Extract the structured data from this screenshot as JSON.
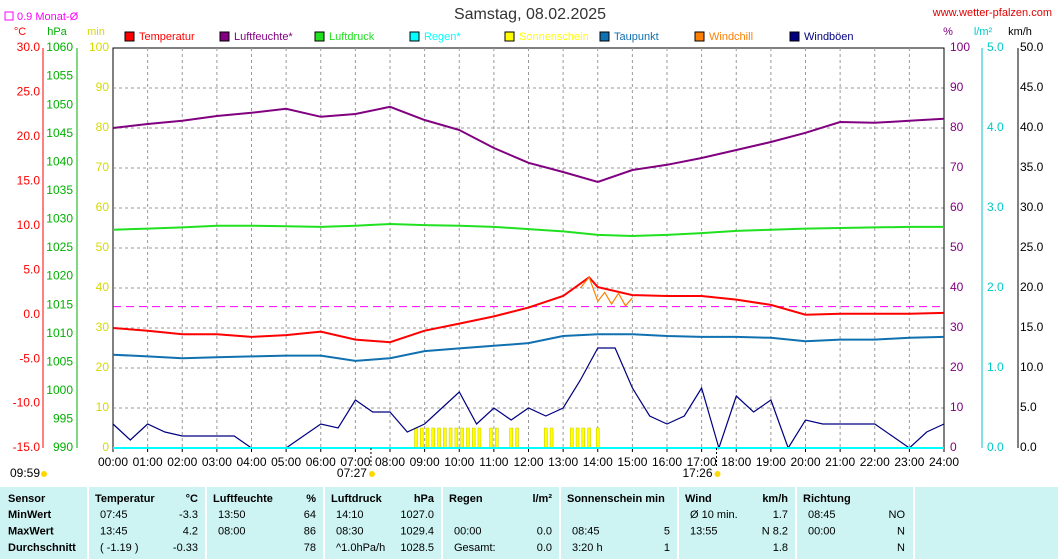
{
  "chart_data": {
    "type": "line",
    "title": "Samstag, 08.02.2025",
    "source": "www.wetter-pfalzen.com",
    "xlim": [
      0,
      24
    ],
    "xticks": [
      {
        "value": 0,
        "label": "00:00"
      },
      {
        "value": 1,
        "label": "01:00"
      },
      {
        "value": 2,
        "label": "02:00"
      },
      {
        "value": 3,
        "label": "03:00"
      },
      {
        "value": 4,
        "label": "04:00"
      },
      {
        "value": 5,
        "label": "05:00"
      },
      {
        "value": 6,
        "label": "06:00"
      },
      {
        "value": 7,
        "label": "07:00"
      },
      {
        "value": 8,
        "label": "08:00"
      },
      {
        "value": 9,
        "label": "09:00"
      },
      {
        "value": 10,
        "label": "10:00"
      },
      {
        "value": 11,
        "label": "11:00"
      },
      {
        "value": 12,
        "label": "12:00"
      },
      {
        "value": 13,
        "label": "13:00"
      },
      {
        "value": 14,
        "label": "14:00"
      },
      {
        "value": 15,
        "label": "15:00"
      },
      {
        "value": 16,
        "label": "16:00"
      },
      {
        "value": 17,
        "label": "17:00"
      },
      {
        "value": 18,
        "label": "18:00"
      },
      {
        "value": 19,
        "label": "19:00"
      },
      {
        "value": 20,
        "label": "20:00"
      },
      {
        "value": 21,
        "label": "21:00"
      },
      {
        "value": 22,
        "label": "22:00"
      },
      {
        "value": 23,
        "label": "23:00"
      },
      {
        "value": 24,
        "label": "24:00"
      }
    ],
    "grid": true,
    "axes": [
      {
        "label": "°C",
        "color": "#ff0000",
        "lim": [
          -15,
          30
        ],
        "ticks": [
          {
            "value": -15,
            "label": "-15.0"
          },
          {
            "value": -10,
            "label": "-10.0"
          },
          {
            "value": -5,
            "label": "-5.0"
          },
          {
            "value": 0,
            "label": "0.0"
          },
          {
            "value": 5,
            "label": "5.0"
          },
          {
            "value": 10,
            "label": "10.0"
          },
          {
            "value": 15,
            "label": "15.0"
          },
          {
            "value": 20,
            "label": "20.0"
          },
          {
            "value": 25,
            "label": "25.0"
          },
          {
            "value": 30,
            "label": "30.0"
          }
        ]
      },
      {
        "label": "hPa",
        "color": "#00b000",
        "lim": [
          990,
          1060
        ],
        "ticks": [
          990,
          995,
          1000,
          1005,
          1010,
          1015,
          1020,
          1025,
          1030,
          1035,
          1040,
          1045,
          1050,
          1055,
          1060
        ]
      },
      {
        "label": "min",
        "color": "#d8d800",
        "lim": [
          0,
          100
        ],
        "ticks": [
          0,
          10,
          20,
          30,
          40,
          50,
          60,
          70,
          80,
          90,
          100
        ]
      },
      {
        "label": "%",
        "color": "#800080",
        "lim": [
          0,
          100
        ],
        "ticks": [
          0,
          10,
          20,
          30,
          40,
          50,
          60,
          70,
          80,
          90,
          100
        ]
      },
      {
        "label": "l/m²",
        "color": "#00c8c8",
        "lim": [
          0,
          5
        ],
        "ticks": [
          {
            "value": 0,
            "label": "0.0"
          },
          {
            "value": 1,
            "label": "1.0"
          },
          {
            "value": 2,
            "label": "2.0"
          },
          {
            "value": 3,
            "label": "3.0"
          },
          {
            "value": 4,
            "label": "4.0"
          },
          {
            "value": 5,
            "label": "5.0"
          }
        ]
      },
      {
        "label": "km/h",
        "color": "#000000",
        "lim": [
          0,
          50
        ],
        "ticks": [
          {
            "value": 0,
            "label": "0.0"
          },
          {
            "value": 5,
            "label": "5.0"
          },
          {
            "value": 10,
            "label": "10.0"
          },
          {
            "value": 15,
            "label": "15.0"
          },
          {
            "value": 20,
            "label": "20.0"
          },
          {
            "value": 25,
            "label": "25.0"
          },
          {
            "value": 30,
            "label": "30.0"
          },
          {
            "value": 35,
            "label": "35.0"
          },
          {
            "value": 40,
            "label": "40.0"
          },
          {
            "value": 45,
            "label": "45.0"
          },
          {
            "value": 50,
            "label": "50.0"
          }
        ]
      }
    ],
    "reference": {
      "label": "0.9 Monat-Ø",
      "value": 0.9,
      "axis": 0,
      "color": "#ff00ff"
    },
    "series": [
      {
        "name": "Temperatur",
        "color": "#ff0000",
        "axis": 0,
        "x": [
          0,
          1,
          2,
          3,
          4,
          5,
          6,
          7,
          8,
          9,
          10,
          11,
          12,
          13,
          13.75,
          14,
          15,
          16,
          17,
          18,
          19,
          20,
          21,
          22,
          23,
          24
        ],
        "values": [
          -1.5,
          -1.8,
          -2.2,
          -2.2,
          -2.5,
          -2.3,
          -1.9,
          -2.8,
          -3.1,
          -1.8,
          -1.0,
          -0.2,
          0.8,
          2.1,
          4.2,
          3.1,
          2.2,
          2.1,
          2.1,
          1.7,
          1.1,
          0.0,
          0.1,
          0.1,
          0.1,
          0.2
        ]
      },
      {
        "name": "Luftfeuchte*",
        "color": "#800080",
        "axis": 3,
        "x": [
          0,
          1,
          2,
          3,
          4,
          5,
          6,
          7,
          8,
          9,
          10,
          11,
          12,
          13,
          14,
          15,
          16,
          17,
          18,
          19,
          20,
          21,
          22,
          23,
          24
        ],
        "values": [
          80,
          81,
          81.8,
          83,
          83.8,
          84.8,
          82.8,
          83.5,
          85.3,
          82,
          79.5,
          75,
          71.3,
          69,
          66.5,
          69.5,
          70.8,
          72.5,
          74.5,
          76.5,
          78.8,
          81.5,
          81.3,
          81.8,
          82.3
        ]
      },
      {
        "name": "Luftdruck",
        "color": "#20e020",
        "axis": 1,
        "x": [
          0,
          1,
          2,
          3,
          4,
          5,
          6,
          7,
          8,
          9,
          10,
          11,
          12,
          13,
          14,
          15,
          16,
          17,
          18,
          19,
          20,
          21,
          22,
          23,
          24
        ],
        "values": [
          1028.2,
          1028.4,
          1028.6,
          1028.9,
          1028.9,
          1028.8,
          1028.7,
          1028.9,
          1029.2,
          1029.0,
          1028.9,
          1028.7,
          1028.3,
          1027.9,
          1027.3,
          1027.1,
          1027.3,
          1027.6,
          1028.0,
          1028.2,
          1028.4,
          1028.5,
          1028.6,
          1028.7,
          1028.7
        ]
      },
      {
        "name": "Regen*",
        "color": "#00ffff",
        "axis": 4,
        "x": [
          0,
          24
        ],
        "values": [
          0,
          0
        ]
      },
      {
        "name": "Sonnenschein",
        "color": "#ffff00",
        "axis": 2,
        "kind": "bar",
        "x": [
          8.75,
          8.917,
          9.083,
          9.25,
          9.417,
          9.583,
          9.75,
          9.917,
          10.083,
          10.25,
          10.417,
          10.583,
          10.917,
          11.083,
          11.5,
          11.667,
          12.5,
          12.667,
          13.25,
          13.417,
          13.583,
          13.75,
          14.0
        ],
        "values": [
          5,
          5,
          5,
          5,
          5,
          5,
          5,
          5,
          5,
          5,
          5,
          5,
          5,
          5,
          5,
          5,
          5,
          5,
          5,
          5,
          5,
          5,
          5
        ]
      },
      {
        "name": "Taupunkt",
        "color": "#1070b0",
        "axis": 0,
        "x": [
          0,
          1,
          2,
          3,
          4,
          5,
          6,
          7,
          8,
          9,
          10,
          11,
          12,
          13,
          14,
          15,
          16,
          17,
          18,
          19,
          20,
          21,
          22,
          23,
          24
        ],
        "values": [
          -4.5,
          -4.7,
          -4.9,
          -4.8,
          -4.7,
          -4.6,
          -4.6,
          -5.2,
          -4.9,
          -4.1,
          -3.8,
          -3.5,
          -3.2,
          -2.4,
          -2.2,
          -2.2,
          -2.4,
          -2.5,
          -2.5,
          -2.6,
          -3.0,
          -2.8,
          -2.8,
          -2.6,
          -2.5
        ]
      },
      {
        "name": "Windchill",
        "color": "#ff8000",
        "axis": 0,
        "x": [
          13.5,
          13.75,
          14,
          14.2,
          14.4,
          14.6,
          14.8,
          15
        ],
        "values": [
          3.0,
          4.2,
          1.5,
          2.5,
          1.2,
          2.4,
          1.0,
          1.9
        ]
      },
      {
        "name": "Windböen",
        "color": "#000080",
        "axis": 5,
        "x": [
          0,
          0.5,
          1,
          1.5,
          2,
          2.5,
          3,
          3.5,
          4,
          4.5,
          5,
          5.5,
          6,
          6.5,
          7,
          7.5,
          8,
          8.5,
          9,
          9.5,
          10,
          10.5,
          11,
          11.5,
          12,
          12.5,
          13,
          13.5,
          14,
          14.5,
          15,
          15.5,
          16,
          16.5,
          17,
          17.5,
          18,
          18.5,
          19,
          19.5,
          20,
          20.5,
          21,
          21.5,
          22,
          22.5,
          23,
          23.5,
          24
        ],
        "values": [
          3,
          1,
          3,
          2,
          1.5,
          1.5,
          1.5,
          1.5,
          0,
          0,
          0,
          1.5,
          3,
          2.5,
          6,
          4.5,
          4.5,
          2,
          3,
          5,
          7,
          3,
          5,
          3.5,
          5,
          4,
          5,
          8.5,
          12.5,
          12.5,
          7.5,
          4,
          3,
          4,
          7.5,
          0,
          6.5,
          4.5,
          6,
          0,
          3.5,
          3,
          3,
          3,
          3,
          1.5,
          0,
          2,
          3
        ]
      }
    ],
    "sunrise": {
      "label": "07:27",
      "x": 7.45
    },
    "sunset": {
      "label": "17:26",
      "x": 17.43
    },
    "daylight": "09:59"
  },
  "table": {
    "header": [
      "Sensor",
      "Temperatur",
      "°C",
      "Luftfeuchte",
      "%",
      "Luftdruck",
      "hPa",
      "Regen",
      "l/m²",
      "Sonnenschein min",
      null,
      "Wind",
      "km/h",
      "Richtung",
      null
    ],
    "rows": [
      [
        "MinWert",
        "07:45",
        "-3.3",
        "13:50",
        "64",
        "14:10",
        "1027.0",
        null,
        null,
        null,
        null,
        "Ø 10 min.",
        "1.7",
        "08:45",
        "NO"
      ],
      [
        "MaxWert",
        "13:45",
        "4.2",
        "08:00",
        "86",
        "08:30",
        "1029.4",
        "00:00",
        "0.0",
        "08:45",
        "5",
        "13:55",
        "N 8.2",
        "00:00",
        "N"
      ],
      [
        "Durchschnitt",
        "( -1.19 )",
        "-0.33",
        null,
        "78",
        "^1.0hPa/h",
        "1028.5",
        "Gesamt:",
        "0.0",
        "3:20 h",
        "1",
        null,
        "1.8",
        null,
        "N"
      ]
    ]
  }
}
